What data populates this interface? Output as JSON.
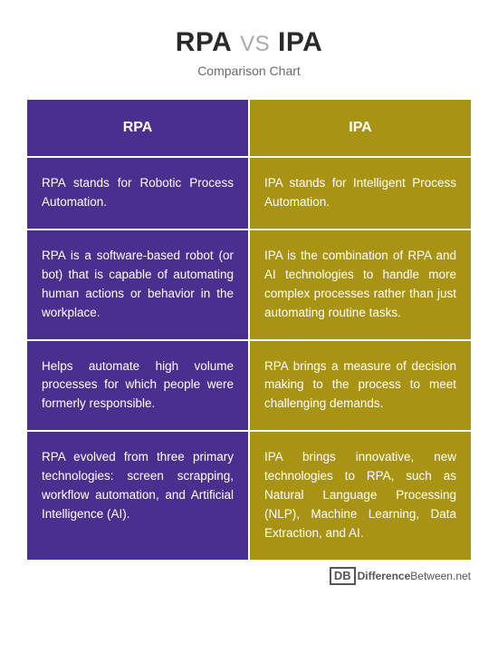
{
  "title": {
    "left": "RPA",
    "vs": "VS",
    "right": "IPA"
  },
  "subtitle": "Comparison Chart",
  "colors": {
    "left_bg": "#4b2f8f",
    "right_bg": "#a99314",
    "text": "#ffffff"
  },
  "table": {
    "type": "table",
    "columns": [
      "RPA",
      "IPA"
    ],
    "rows": [
      [
        "RPA stands for Robotic Process Automation.",
        "IPA stands for Intelligent Process Automation."
      ],
      [
        "RPA is a software-based robot (or bot) that is capable of automating human actions or behavior in the workplace.",
        "IPA is the combination of RPA and AI technologies to handle more complex processes rather than just automating routine tasks."
      ],
      [
        "Helps automate high volume processes for which people were formerly responsible.",
        "RPA brings a measure of decision making to the process to meet challenging demands."
      ],
      [
        "RPA evolved from three primary technologies: screen scrapping, workflow automation, and Artificial Intelligence (AI).",
        "IPA brings innovative, new technologies to RPA, such as Natural Language Processing (NLP), Machine Learning, Data Extraction, and AI."
      ]
    ]
  },
  "logo": {
    "badge": "DB",
    "brand_bold": "Difference",
    "brand_rest": "Between.net"
  }
}
